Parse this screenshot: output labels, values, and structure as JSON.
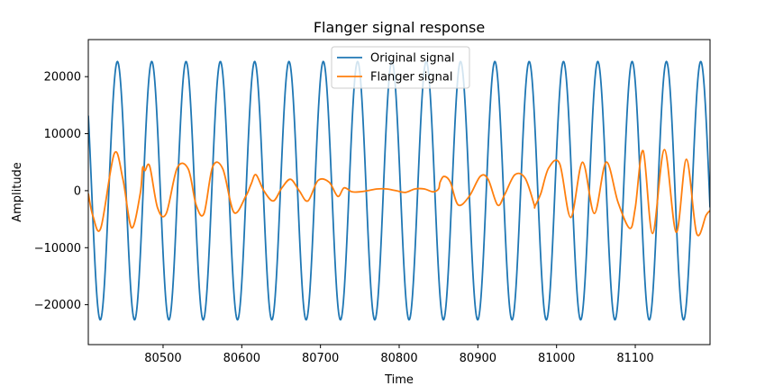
{
  "chart_data": {
    "type": "line",
    "title": "Flanger signal response",
    "xlabel": "Time",
    "ylabel": "Amplitude",
    "xlim": [
      80405,
      81195
    ],
    "ylim": [
      -27000,
      26500
    ],
    "x_ticks": [
      80500,
      80600,
      80700,
      80800,
      80900,
      81000,
      81100
    ],
    "x_tick_labels": [
      "80500",
      "80600",
      "80700",
      "80800",
      "80900",
      "81000",
      "81100"
    ],
    "y_ticks": [
      -20000,
      -10000,
      0,
      10000,
      20000
    ],
    "y_tick_labels": [
      "−20000",
      "−10000",
      "0",
      "10000",
      "20000"
    ],
    "grid": false,
    "legend_position": "top-center",
    "series": [
      {
        "name": "Original signal",
        "color": "#1f77b4",
        "description": "sine wave, amplitude 22650, period ~43.6 samples",
        "amplitude": 22650,
        "period": 43.6,
        "peak_at": 80442
      },
      {
        "name": "Flanger signal",
        "color": "#ff7f0e",
        "x": [
          80405,
          80411,
          80421,
          80438,
          80449,
          80460,
          80471,
          80474,
          80477,
          80483,
          80493,
          80504,
          80518,
          80532,
          80542,
          80552,
          80563,
          80576,
          80590,
          80605,
          80612,
          80618,
          80628,
          80640,
          80651,
          80662,
          80673,
          80684,
          80697,
          80711,
          80722,
          80730,
          80740,
          80750,
          80760,
          80772,
          80784,
          80796,
          80808,
          80820,
          80832,
          80843,
          80850,
          80852,
          80857,
          80865,
          80875,
          80889,
          80903,
          80913,
          80925,
          80934,
          80947,
          80960,
          80971,
          80972,
          80973,
          80980,
          80990,
          81004,
          81018,
          81033,
          81048,
          81063,
          81078,
          81093,
          81100,
          81110,
          81122,
          81137,
          81152,
          81165,
          81178,
          81190,
          81195
        ],
        "y": [
          -500,
          -4500,
          -6500,
          6500,
          2000,
          -6500,
          -500,
          4000,
          3500,
          4300,
          -3000,
          -4000,
          4000,
          3800,
          -2500,
          -4000,
          4200,
          3800,
          -3800,
          -1000,
          1200,
          2800,
          0,
          -1800,
          500,
          2000,
          0,
          -1800,
          1800,
          1500,
          -1000,
          500,
          -200,
          -200,
          0,
          300,
          300,
          0,
          -300,
          300,
          300,
          -200,
          300,
          1500,
          2500,
          1500,
          -2500,
          -1000,
          2500,
          2000,
          -2500,
          -700,
          2800,
          2200,
          -2200,
          -3000,
          -2600,
          -500,
          4000,
          4700,
          -4700,
          5000,
          -4000,
          5000,
          -2000,
          -6600,
          -3000,
          7000,
          -7500,
          7200,
          -7300,
          5500,
          -7500,
          -4300,
          -3500
        ]
      }
    ]
  }
}
